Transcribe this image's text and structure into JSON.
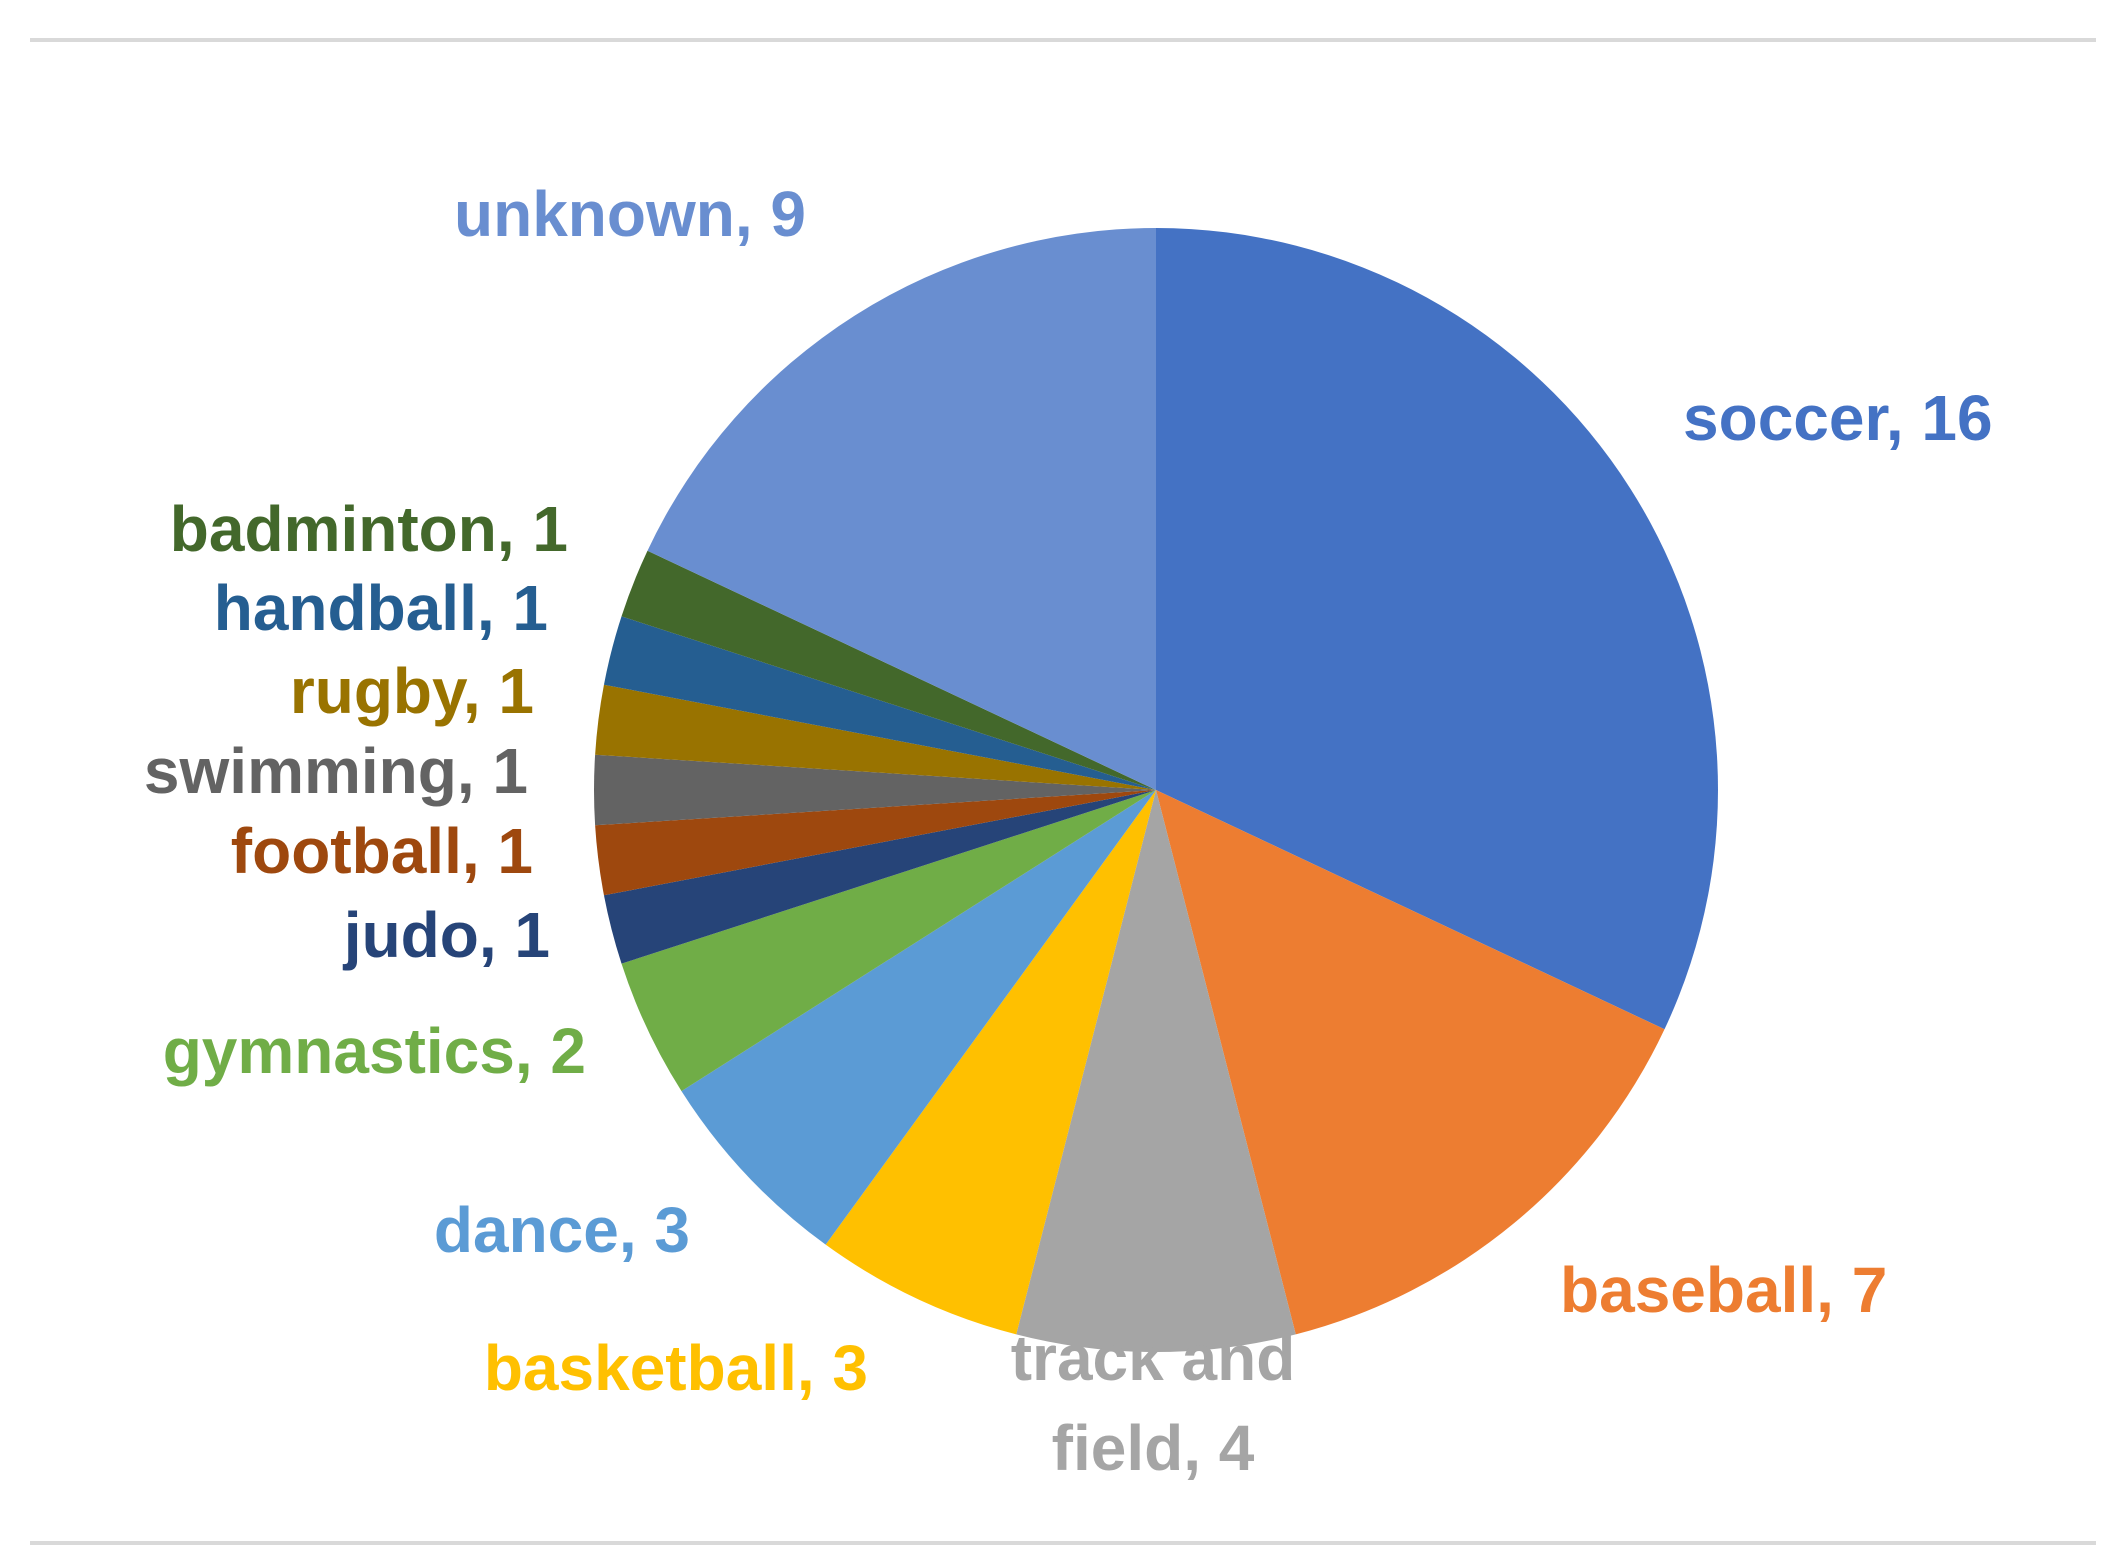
{
  "chart_data": {
    "type": "pie",
    "title": "",
    "start_angle_deg": 0,
    "direction": "clockwise",
    "legend": "none",
    "slices": [
      {
        "label": "soccer",
        "value": 16,
        "color": "#4472C4",
        "label_text": "soccer, 16"
      },
      {
        "label": "baseball",
        "value": 7,
        "color": "#ED7D31",
        "label_text": "baseball, 7"
      },
      {
        "label": "track and field",
        "value": 4,
        "color": "#A5A5A5",
        "label_lines": [
          "track and",
          "field, 4"
        ]
      },
      {
        "label": "basketball",
        "value": 3,
        "color": "#FFC000",
        "label_text": "basketball, 3"
      },
      {
        "label": "dance",
        "value": 3,
        "color": "#5B9BD5",
        "label_text": "dance, 3"
      },
      {
        "label": "gymnastics",
        "value": 2,
        "color": "#70AD47",
        "label_text": "gymnastics, 2"
      },
      {
        "label": "judo",
        "value": 1,
        "color": "#264478",
        "label_text": "judo, 1"
      },
      {
        "label": "football",
        "value": 1,
        "color": "#9E480E",
        "label_text": "football, 1"
      },
      {
        "label": "swimming",
        "value": 1,
        "color": "#636363",
        "label_text": "swimming, 1"
      },
      {
        "label": "rugby",
        "value": 1,
        "color": "#997300",
        "label_text": "rugby, 1"
      },
      {
        "label": "handball",
        "value": 1,
        "color": "#255E91",
        "label_text": "handball, 1"
      },
      {
        "label": "badminton",
        "value": 1,
        "color": "#43682B",
        "label_text": "badminton, 1"
      },
      {
        "label": "unknown",
        "value": 9,
        "color": "#698ED0",
        "label_text": "unknown, 9"
      }
    ]
  }
}
